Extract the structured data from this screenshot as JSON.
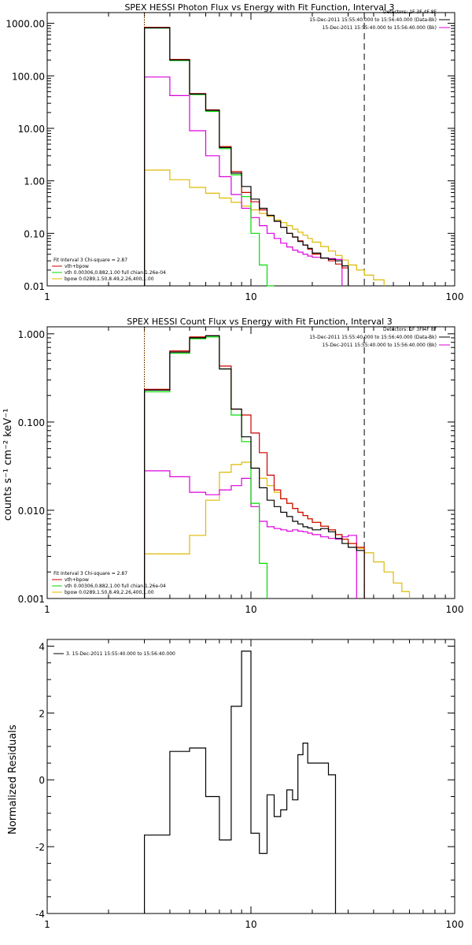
{
  "colors": {
    "data": "#000000",
    "model": "#cc0000",
    "vth": "#00dd00",
    "bpow": "#ddbb00",
    "background": "#dd00dd",
    "energy_range": "#ff8800"
  },
  "chart_data": [
    {
      "type": "line",
      "id": "photon",
      "title": "SPEX HESSI Photon Flux vs Energy with Fit Function, Interval 3",
      "xlabel": "",
      "ylabel": "",
      "xscale": "log",
      "yscale": "log",
      "xlim": [
        1,
        100
      ],
      "ylim": [
        0.01,
        1600
      ],
      "x_ticks": [
        "1",
        "10",
        "100"
      ],
      "y_ticks": [
        "1000.00",
        "100.00",
        "10.00",
        "1.00",
        "0.10",
        "0.01"
      ],
      "legend_right": [
        "Detectors: 1F 3F 4F 8F",
        "15-Dec-2011 15:55:40.000 to 15:56:40.000 (Data-Bk)",
        "15-Dec-2011 15:55:40.000 to 15:56:40.000 (Bk)"
      ],
      "legend_left": [
        "Fit Interval 3   Chi-square = 2.87",
        "vth+bpow",
        "vth 0.00306,0.882,1.00  full chian 1.26e-04",
        "bpow 0.0289,1.50,8.49,2.26,400,1.00"
      ],
      "vlines": [
        3,
        36
      ],
      "edges": [
        3,
        4,
        5,
        6,
        7,
        8,
        9,
        10,
        11,
        12,
        13,
        14,
        15,
        16,
        17,
        18,
        19,
        20,
        22,
        24,
        26,
        28,
        30,
        33,
        36,
        40,
        45
      ],
      "series": [
        {
          "name": "Data-Bk",
          "key": "data",
          "values": [
            820,
            200,
            45,
            22,
            4.3,
            1.4,
            0.78,
            0.45,
            0.3,
            0.22,
            0.17,
            0.13,
            0.1,
            0.085,
            0.07,
            0.06,
            0.052,
            0.042,
            0.034,
            0.032,
            0.03,
            0.024
          ]
        },
        {
          "name": "vth+bpow",
          "key": "model",
          "values": [
            840,
            205,
            46,
            22.5,
            4.5,
            1.5,
            0.6,
            0.4,
            0.28,
            0.22,
            0.17,
            0.13,
            0.1,
            0.085,
            0.072,
            0.06,
            0.05,
            0.04,
            0.034,
            0.03,
            0.026,
            0.022
          ]
        },
        {
          "name": "vth",
          "key": "vth",
          "values": [
            810,
            195,
            44,
            21,
            4.1,
            1.3,
            0.5,
            0.1,
            0.025,
            0.008
          ]
        },
        {
          "name": "bpow",
          "key": "bpow",
          "values": [
            1.6,
            1.05,
            0.75,
            0.58,
            0.47,
            0.39,
            0.33,
            0.28,
            0.24,
            0.21,
            0.18,
            0.16,
            0.14,
            0.12,
            0.105,
            0.092,
            0.08,
            0.068,
            0.056,
            0.046,
            0.038,
            0.031,
            0.025,
            0.02,
            0.016,
            0.013
          ]
        },
        {
          "name": "Bk",
          "key": "background",
          "values": [
            95,
            42,
            9,
            3,
            1.2,
            0.55,
            0.3,
            0.2,
            0.14,
            0.1,
            0.08,
            0.065,
            0.055,
            0.048,
            0.044,
            0.04,
            0.037,
            0.035,
            0.034,
            0.033,
            0.032
          ]
        }
      ]
    },
    {
      "type": "line",
      "id": "count",
      "title": "SPEX HESSI Count Flux vs Energy with Fit Function, Interval 3",
      "xlabel": "",
      "ylabel": "counts s⁻¹ cm⁻² keV⁻¹",
      "xscale": "log",
      "yscale": "log",
      "xlim": [
        1,
        100
      ],
      "ylim": [
        0.001,
        1.2
      ],
      "x_ticks": [
        "1",
        "10",
        "100"
      ],
      "y_ticks": [
        "1.000",
        "0.100",
        "0.010",
        "0.001"
      ],
      "legend_right": [
        "Detectors: 1F 3F 4F 8F",
        "15-Dec-2011 15:55:40.000 to 15:56:40.000 (Data-Bk)",
        "15-Dec-2011 15:55:40.000 to 15:56:40.000 (Bk)"
      ],
      "legend_left": [
        "Fit Interval 3   Chi-square = 2.87",
        "vth+bpow",
        "vth 0.00306,0.882,1.00  full chian 1.26e-04",
        "bpow 0.0289,1.50,8.49,2.26,400,1.00"
      ],
      "vlines": [
        3,
        36
      ],
      "edges": [
        3,
        4,
        5,
        6,
        7,
        8,
        9,
        10,
        11,
        12,
        13,
        14,
        15,
        16,
        17,
        18,
        19,
        20,
        22,
        24,
        26,
        28,
        30,
        33,
        36,
        40,
        45,
        50,
        55,
        60
      ],
      "series": [
        {
          "name": "Data-Bk",
          "key": "data",
          "values": [
            0.23,
            0.62,
            0.9,
            0.95,
            0.4,
            0.14,
            0.068,
            0.03,
            0.018,
            0.013,
            0.011,
            0.0095,
            0.0085,
            0.0075,
            0.007,
            0.0065,
            0.0063,
            0.006,
            0.0062,
            0.0057,
            0.0048,
            0.0042,
            0.0038,
            0.0035
          ]
        },
        {
          "name": "vth+bpow",
          "key": "model",
          "values": [
            0.235,
            0.64,
            0.92,
            0.95,
            0.43,
            0.14,
            0.12,
            0.075,
            0.045,
            0.025,
            0.017,
            0.0135,
            0.012,
            0.0105,
            0.0095,
            0.0087,
            0.008,
            0.0073,
            0.0066,
            0.006,
            0.0053,
            0.0047,
            0.0042,
            0.0038
          ]
        },
        {
          "name": "vth",
          "key": "vth",
          "values": [
            0.22,
            0.6,
            0.88,
            0.92,
            0.4,
            0.12,
            0.06,
            0.012,
            0.0025
          ]
        },
        {
          "name": "bpow",
          "key": "bpow",
          "values": [
            0.0032,
            0.0032,
            0.0052,
            0.013,
            0.027,
            0.033,
            0.035,
            0.03,
            0.023,
            0.019,
            0.016,
            0.0135,
            0.012,
            0.0105,
            0.0095,
            0.0087,
            0.008,
            0.0073,
            0.0066,
            0.006,
            0.0053,
            0.0047,
            0.0042,
            0.0037,
            0.0033,
            0.0026,
            0.002,
            0.0015,
            0.0012
          ]
        },
        {
          "name": "Bk",
          "key": "background",
          "values": [
            0.028,
            0.024,
            0.016,
            0.015,
            0.017,
            0.019,
            0.023,
            0.011,
            0.0075,
            0.0065,
            0.0062,
            0.006,
            0.0058,
            0.006,
            0.0058,
            0.0057,
            0.0055,
            0.0053,
            0.005,
            0.0048,
            0.0047,
            0.005,
            0.0052
          ]
        }
      ]
    },
    {
      "type": "line",
      "id": "residuals",
      "title": "",
      "xlabel": "",
      "ylabel": "Normalized Residuals",
      "xscale": "log",
      "yscale": "linear",
      "xlim": [
        1,
        100
      ],
      "ylim": [
        -4,
        4.2
      ],
      "x_ticks": [
        "1",
        "10",
        "100"
      ],
      "y_ticks": [
        "4",
        "2",
        "0",
        "-2",
        "-4"
      ],
      "legend_left": [
        "3. 15-Dec-2011 15:55:40.000 to 15:56:40.000"
      ],
      "edges": [
        3,
        4,
        5,
        6,
        7,
        8,
        9,
        10,
        11,
        12,
        13,
        14,
        15,
        16,
        17,
        18,
        19,
        20,
        22,
        24,
        26,
        28,
        30,
        33,
        36
      ],
      "series": [
        {
          "name": "3. 15-Dec-2011 15:55:40.000 to 15:56:40.000",
          "key": "data",
          "values": [
            -1.65,
            0.85,
            0.95,
            -0.5,
            -1.8,
            2.2,
            3.85,
            -1.6,
            -2.2,
            -0.45,
            -1.1,
            -0.9,
            -0.3,
            -0.6,
            0.75,
            1.1,
            0.5,
            0.5,
            0.5,
            0.15
          ]
        }
      ]
    }
  ]
}
